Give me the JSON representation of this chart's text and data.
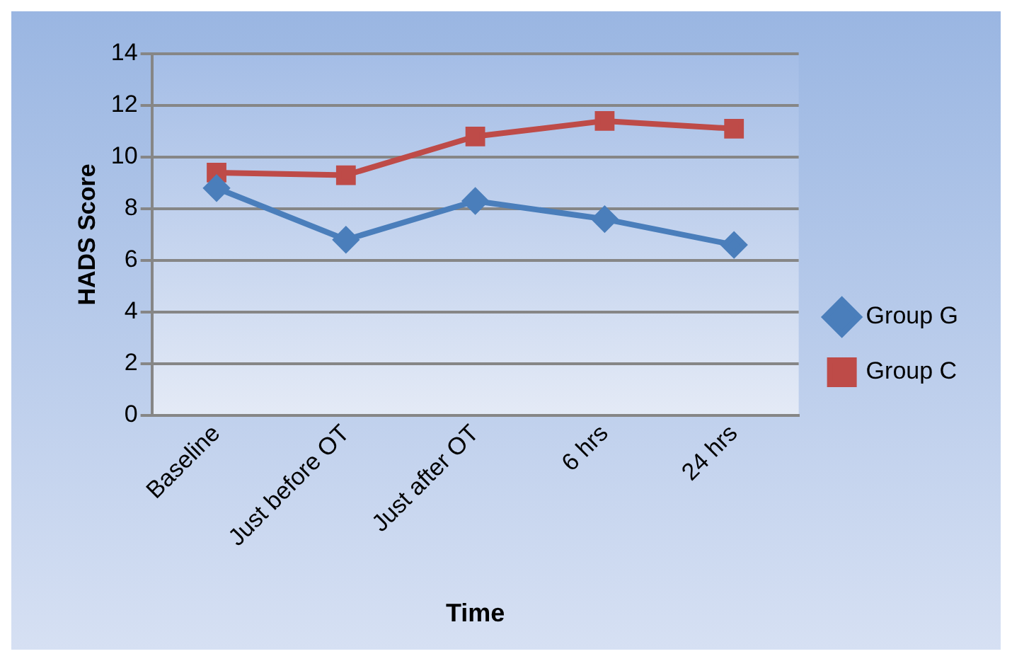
{
  "chart_data": {
    "type": "line",
    "xlabel": "Time",
    "ylabel": "HADS Score",
    "categories": [
      "Baseline",
      "Just before OT",
      "Just after OT",
      "6 hrs",
      "24 hrs"
    ],
    "series": [
      {
        "name": "Group G",
        "color": "#4a7ebb",
        "marker": "diamond",
        "values": [
          8.8,
          6.8,
          8.3,
          7.6,
          6.6
        ]
      },
      {
        "name": "Group C",
        "color": "#be4b48",
        "marker": "square",
        "values": [
          9.4,
          9.3,
          10.8,
          11.4,
          11.1
        ]
      }
    ],
    "ylim": [
      0,
      14
    ],
    "yticks": [
      0,
      2,
      4,
      6,
      8,
      10,
      12,
      14
    ],
    "grid": "y",
    "legend": "right"
  }
}
